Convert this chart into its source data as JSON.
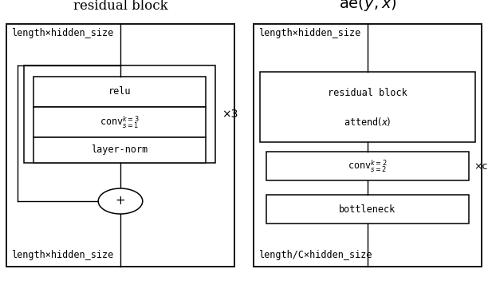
{
  "fig_width": 6.12,
  "fig_height": 3.52,
  "dpi": 100,
  "bg_color": "white",
  "left_title": "residual block",
  "left_input_label": "length×hidden_size",
  "left_output_label": "length×hidden_size",
  "right_input_label": "length×hidden_size",
  "right_output_label": "length/C×hidden_size",
  "x3_label": "×3",
  "xc_label": "×c",
  "font_size_title": 12,
  "font_size_mono": 8.5,
  "font_size_xn": 10
}
